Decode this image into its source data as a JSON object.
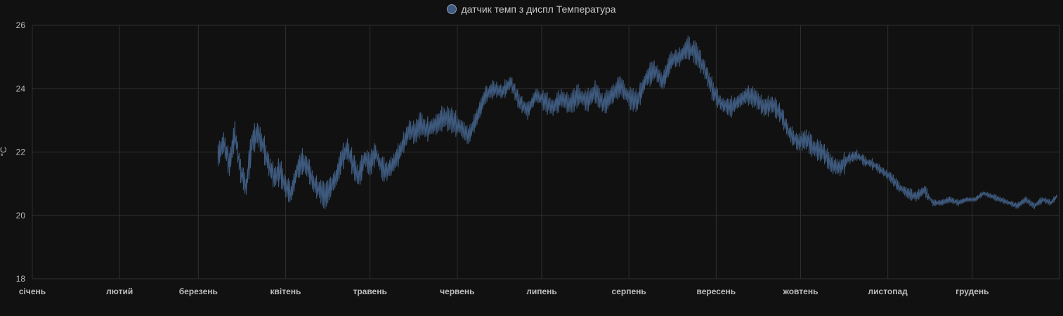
{
  "chart_data": {
    "type": "line",
    "title": "",
    "xlabel": "",
    "ylabel": "°C",
    "ylim": [
      18,
      26
    ],
    "yticks": [
      "26",
      "24",
      "22",
      "20",
      "18"
    ],
    "x_tick_labels": [
      "січень",
      "лютий",
      "березень",
      "квітень",
      "травень",
      "червень",
      "липень",
      "серпень",
      "вересень",
      "жовтень",
      "листопад",
      "грудень"
    ],
    "x_units": "day of year (1 = 1 січня)",
    "xlim": [
      1,
      366
    ],
    "grid": true,
    "legend_position": "top-center",
    "series": [
      {
        "name": "датчик темп з диспл Температура",
        "color": "#3e5a7e",
        "x": [
          67,
          69,
          71,
          73,
          75,
          77,
          79,
          81,
          83,
          85,
          87,
          89,
          91,
          93,
          95,
          97,
          99,
          101,
          103,
          105,
          107,
          109,
          111,
          113,
          115,
          117,
          119,
          121,
          123,
          125,
          127,
          129,
          131,
          133,
          135,
          137,
          139,
          141,
          143,
          145,
          147,
          150,
          153,
          156,
          159,
          162,
          165,
          168,
          171,
          174,
          177,
          180,
          183,
          186,
          189,
          192,
          195,
          198,
          201,
          204,
          207,
          210,
          213,
          216,
          219,
          222,
          225,
          228,
          231,
          234,
          237,
          240,
          243,
          246,
          249,
          252,
          255,
          258,
          261,
          264,
          267,
          270,
          273,
          276,
          279,
          282,
          285,
          288,
          291,
          294,
          297,
          300,
          303,
          306,
          309,
          312,
          315,
          318,
          321,
          324,
          327,
          330,
          333,
          336,
          339,
          342,
          345,
          348,
          351,
          354,
          357,
          360,
          363,
          365
        ],
        "y": [
          21.9,
          22.3,
          21.6,
          22.6,
          21.4,
          20.9,
          22.3,
          22.6,
          22.2,
          21.6,
          21.2,
          21.4,
          20.9,
          20.7,
          21.4,
          21.7,
          21.5,
          21.0,
          20.8,
          20.6,
          20.9,
          21.2,
          21.8,
          22.1,
          21.6,
          21.2,
          21.8,
          21.6,
          22.0,
          21.5,
          21.4,
          21.6,
          21.9,
          22.3,
          22.7,
          22.6,
          22.9,
          22.7,
          22.8,
          22.9,
          23.1,
          23.0,
          22.8,
          22.5,
          23.1,
          23.8,
          24.0,
          23.9,
          24.2,
          23.6,
          23.3,
          23.8,
          23.6,
          23.4,
          23.7,
          23.5,
          23.8,
          23.6,
          23.9,
          23.5,
          23.8,
          24.1,
          23.7,
          23.6,
          24.3,
          24.6,
          24.2,
          24.9,
          25.0,
          25.3,
          25.1,
          24.6,
          23.9,
          23.5,
          23.4,
          23.6,
          23.8,
          23.7,
          23.4,
          23.5,
          23.2,
          22.6,
          22.3,
          22.4,
          22.1,
          22.0,
          21.6,
          21.5,
          21.8,
          21.9,
          21.7,
          21.6,
          21.4,
          21.2,
          20.9,
          20.7,
          20.6,
          20.8,
          20.4,
          20.4,
          20.5,
          20.4,
          20.5,
          20.5,
          20.7,
          20.6,
          20.5,
          20.4,
          20.3,
          20.5,
          20.3,
          20.5,
          20.4,
          20.6
        ]
      }
    ]
  }
}
